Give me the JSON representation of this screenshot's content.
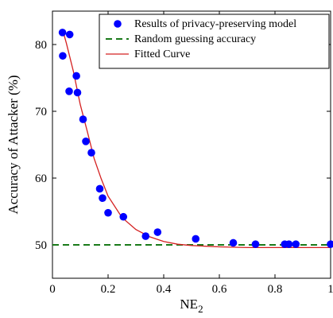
{
  "chart_data": {
    "type": "scatter",
    "title": "",
    "xlabel": "NE",
    "xlabel_sub": "2",
    "ylabel": "Accuracy of Attacker (%)",
    "xlim": [
      0,
      1
    ],
    "ylim": [
      45,
      85
    ],
    "xticks": [
      0,
      0.2,
      0.4,
      0.6,
      0.8,
      1
    ],
    "xtick_labels": [
      "0",
      "0.2",
      "0.4",
      "0.6",
      "0.8",
      "1"
    ],
    "yticks": [
      50,
      60,
      70,
      80
    ],
    "ytick_labels": [
      "50",
      "60",
      "70",
      "80"
    ],
    "grid": false,
    "legend_position": "top-right",
    "series": [
      {
        "name": "Results of privacy-preserving model",
        "kind": "scatter",
        "color": "#0000ff",
        "points": [
          [
            0.036,
            81.8
          ],
          [
            0.062,
            81.5
          ],
          [
            0.037,
            78.3
          ],
          [
            0.086,
            75.3
          ],
          [
            0.06,
            73.0
          ],
          [
            0.09,
            72.8
          ],
          [
            0.11,
            68.8
          ],
          [
            0.12,
            65.5
          ],
          [
            0.14,
            63.8
          ],
          [
            0.17,
            58.4
          ],
          [
            0.18,
            57.0
          ],
          [
            0.2,
            54.8
          ],
          [
            0.255,
            54.2
          ],
          [
            0.335,
            51.3
          ],
          [
            0.378,
            51.9
          ],
          [
            0.515,
            50.9
          ],
          [
            0.65,
            50.3
          ],
          [
            0.73,
            50.1
          ],
          [
            0.835,
            50.1
          ],
          [
            0.85,
            50.1
          ],
          [
            0.875,
            50.1
          ],
          [
            1.0,
            50.1
          ]
        ]
      },
      {
        "name": "Random guessing accuracy",
        "kind": "hline",
        "color": "#1a7a1a",
        "y": 50
      },
      {
        "name": "Fitted Curve",
        "kind": "line",
        "color": "#d42020",
        "points": [
          [
            0.036,
            82.3
          ],
          [
            0.05,
            80.2
          ],
          [
            0.075,
            76.0
          ],
          [
            0.1,
            71.0
          ],
          [
            0.125,
            67.0
          ],
          [
            0.15,
            62.9
          ],
          [
            0.175,
            59.9
          ],
          [
            0.2,
            57.3
          ],
          [
            0.25,
            54.1
          ],
          [
            0.3,
            52.3
          ],
          [
            0.35,
            51.2
          ],
          [
            0.4,
            50.5
          ],
          [
            0.45,
            50.1
          ],
          [
            0.5,
            49.9
          ],
          [
            0.55,
            49.8
          ],
          [
            0.6,
            49.7
          ],
          [
            0.7,
            49.6
          ],
          [
            0.8,
            49.6
          ],
          [
            0.9,
            49.6
          ],
          [
            1.0,
            49.6
          ]
        ]
      }
    ]
  }
}
